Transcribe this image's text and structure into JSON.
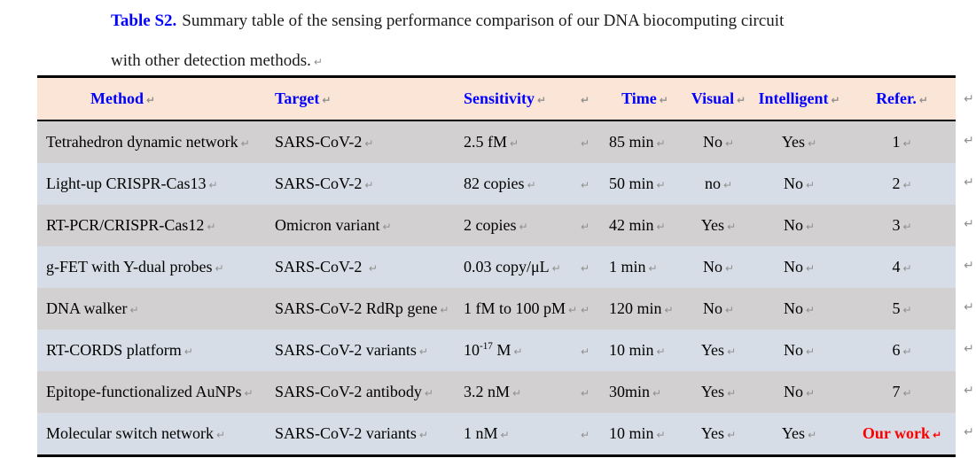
{
  "caption": {
    "label": "Table S2.",
    "line1": "Summary table of the sensing performance comparison of our DNA biocomputing circuit",
    "line2": "with other detection methods."
  },
  "marks": {
    "cell_return": "↵",
    "row_return": "↵"
  },
  "columns": [
    {
      "key": "method",
      "label": "Method"
    },
    {
      "key": "target",
      "label": "Target"
    },
    {
      "key": "sensitivity",
      "label": "Sensitivity"
    },
    {
      "key": "blank",
      "label": ""
    },
    {
      "key": "time",
      "label": "Time"
    },
    {
      "key": "visual",
      "label": "Visual"
    },
    {
      "key": "intelligent",
      "label": "Intelligent"
    },
    {
      "key": "refer",
      "label": "Refer."
    }
  ],
  "rows": [
    {
      "method": "Tetrahedron dynamic network",
      "target": "SARS-CoV-2",
      "sensitivity": "2.5 fM",
      "blank": "",
      "time": "85 min",
      "visual": "No",
      "intelligent": "Yes",
      "refer": "1",
      "refer_highlight": false
    },
    {
      "method": "Light-up CRISPR-Cas13",
      "target": "SARS-CoV-2",
      "sensitivity": "82 copies",
      "blank": "",
      "time": "50 min",
      "visual": "no",
      "intelligent": "No",
      "refer": "2",
      "refer_highlight": false
    },
    {
      "method": "RT-PCR/CRISPR-Cas12",
      "target": "Omicron variant",
      "sensitivity": "2 copies",
      "blank": "",
      "time": "42 min",
      "visual": "Yes",
      "intelligent": "No",
      "refer": "3",
      "refer_highlight": false
    },
    {
      "method": "g-FET with Y-dual probes",
      "target": "SARS-CoV-2 ",
      "sensitivity": "0.03 copy/μL",
      "blank": "",
      "time": "1 min",
      "visual": "No",
      "intelligent": "No",
      "refer": "4",
      "refer_highlight": false
    },
    {
      "method": "DNA walker",
      "target": "SARS-CoV-2 RdRp gene",
      "sensitivity": "1 fM to 100 pM",
      "blank": "",
      "time": "120 min",
      "visual": "No",
      "intelligent": "No",
      "refer": "5",
      "refer_highlight": false
    },
    {
      "method": "RT-CORDS platform",
      "target": "SARS-CoV-2 variants",
      "sensitivity": [
        {
          "t": "10"
        },
        {
          "t": "-17",
          "sup": true
        },
        {
          "t": " M"
        }
      ],
      "blank": "",
      "time": "10 min",
      "visual": "Yes",
      "intelligent": "No",
      "refer": "6",
      "refer_highlight": false
    },
    {
      "method": "Epitope-functionalized AuNPs",
      "target": "SARS-CoV-2 antibody",
      "sensitivity": "3.2 nM",
      "blank": "",
      "time": "30min",
      "visual": "Yes",
      "intelligent": "No",
      "refer": "7",
      "refer_highlight": false
    },
    {
      "method": "Molecular switch network",
      "target": "SARS-CoV-2 variants",
      "sensitivity": "1 nM",
      "blank": "",
      "time": "10 min",
      "visual": "Yes",
      "intelligent": "Yes",
      "refer": "Our work",
      "refer_highlight": true
    }
  ],
  "colors": {
    "header_bg": "#FBE5D6",
    "row_gray": "#D2D0D0",
    "row_blue": "#D7DDE6",
    "header_text": "#0000FF",
    "caption_label": "#0000FF",
    "highlight": "#FF0000",
    "mark": "#909090"
  }
}
